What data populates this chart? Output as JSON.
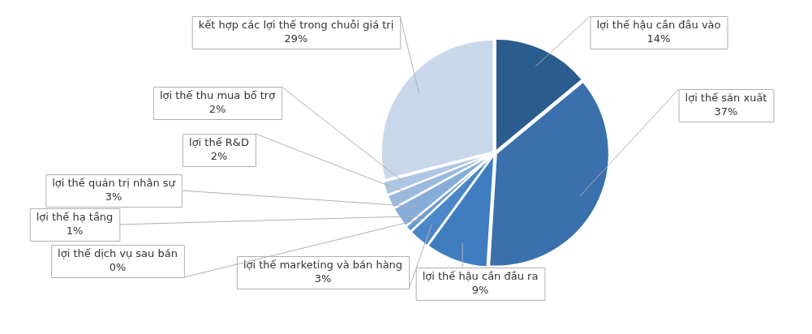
{
  "chart_data": {
    "type": "pie",
    "categories": [
      "lợi thế hậu cần đầu vào",
      "lợi thế sản xuất",
      "lợi thế hậu cần đầu ra",
      "lợi thế marketing và bán hàng",
      "lợi thế dịch vụ sau bán",
      "lợi thế hạ tầng",
      "lợi thế quản trị nhân sự",
      "lợi thế R&D",
      "lợi thế thu mua bổ trợ",
      "kết hợp các lợi thế trong chuỗi giá trị"
    ],
    "values": [
      14,
      37,
      9,
      3,
      0,
      1,
      3,
      2,
      2,
      29
    ],
    "value_labels": [
      "14%",
      "37%",
      "9%",
      "3%",
      "0%",
      "1%",
      "3%",
      "2%",
      "2%",
      "29%"
    ],
    "colors": [
      "#2b5c8e",
      "#3a70ab",
      "#3f7dc0",
      "#4a86c8",
      "#5a90cc",
      "#6a9bd2",
      "#86acd8",
      "#9ab9de",
      "#adc6e4",
      "#c9d7ea"
    ],
    "legend": false
  }
}
